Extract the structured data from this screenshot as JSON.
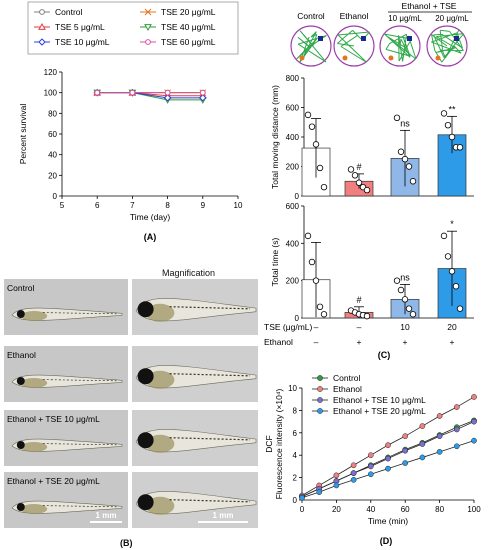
{
  "panelA": {
    "label": "(A)",
    "ylabel": "Percent survival",
    "xlabel": "Time (day)",
    "legend": [
      {
        "name": "Control",
        "color": "#7f7f7f",
        "marker": "circle"
      },
      {
        "name": "TSE 20 μg/mL",
        "color": "#e4741f",
        "marker": "x"
      },
      {
        "name": "TSE 5 μg/mL",
        "color": "#e33b3b",
        "marker": "triangle"
      },
      {
        "name": "TSE 40 μg/mL",
        "color": "#2e9b3a",
        "marker": "triangle-down"
      },
      {
        "name": "TSE 10 μg/mL",
        "color": "#2b3de0",
        "marker": "diamond"
      },
      {
        "name": "TSE 60 μg/mL",
        "color": "#d94fa0",
        "marker": "circle"
      }
    ]
  },
  "panelB": {
    "label": "(B)",
    "magnification": "Magnification",
    "rows": [
      {
        "label": "Control"
      },
      {
        "label": "Ethanol"
      },
      {
        "label": "Ethanol + TSE 10 μg/mL"
      },
      {
        "label": "Ethanol + TSE 20 μg/mL"
      }
    ],
    "scale_left": "1 mm",
    "scale_right": "1 mm"
  },
  "panelC": {
    "label": "(C)",
    "header": {
      "control": "Control",
      "ethanol": "Ethanol",
      "group": "Ethanol + TSE",
      "dose10": "10 μg/mL",
      "dose20": "20 μg/mL"
    },
    "tse_row_label": "TSE (μg/mL)",
    "ethanol_row_label": "Ethanol",
    "tse_row": [
      "–",
      "–",
      "10",
      "20"
    ],
    "ethanol_row": [
      "–",
      "+",
      "+",
      "+"
    ],
    "colors": [
      "#ffffff",
      "#f08080",
      "#8fb8e8",
      "#2e9be8"
    ]
  },
  "panelD": {
    "label": "(D)",
    "ylabel1": "DCF",
    "ylabel2": "Fluorescence intensity (×10⁴)"
  },
  "chart_data": [
    {
      "type": "line",
      "ylabel": "Percent survival",
      "xlabel": "Time (day)",
      "xlim": [
        5,
        10
      ],
      "ylim": [
        0,
        120
      ],
      "xticks": [
        5,
        6,
        7,
        8,
        9,
        10
      ],
      "yticks": [
        0,
        20,
        40,
        60,
        80,
        100,
        120
      ],
      "grid": false,
      "legend_position": "top",
      "x": [
        6,
        7,
        8,
        9
      ],
      "series": [
        {
          "name": "Control",
          "values": [
            100,
            100,
            100,
            100
          ]
        },
        {
          "name": "TSE 20 μg/mL",
          "values": [
            100,
            100,
            100,
            100
          ]
        },
        {
          "name": "TSE 5 μg/mL",
          "values": [
            100,
            100,
            97,
            97
          ]
        },
        {
          "name": "TSE 40 μg/mL",
          "values": [
            100,
            100,
            93,
            93
          ]
        },
        {
          "name": "TSE 10 μg/mL",
          "values": [
            100,
            100,
            95,
            95
          ]
        },
        {
          "name": "TSE 60 μg/mL",
          "values": [
            100,
            100,
            100,
            100
          ]
        }
      ]
    },
    {
      "type": "bar",
      "ylabel": "Total moving distance (mm)",
      "categories": [
        "Control",
        "Ethanol",
        "TSE 10",
        "TSE 20"
      ],
      "ylim": [
        0,
        800
      ],
      "yticks": [
        0,
        200,
        400,
        600,
        800
      ],
      "values": [
        325,
        100,
        255,
        415
      ],
      "errors": [
        200,
        50,
        190,
        125
      ],
      "points": [
        [
          550,
          470,
          350,
          190,
          60
        ],
        [
          180,
          140,
          90,
          60,
          40
        ],
        [
          530,
          300,
          250,
          200,
          100
        ],
        [
          560,
          480,
          400,
          330,
          330
        ]
      ],
      "significance": [
        "",
        "#",
        "ns",
        "**"
      ]
    },
    {
      "type": "bar",
      "ylabel": "Total time (s)",
      "categories": [
        "Control",
        "Ethanol",
        "TSE 10",
        "TSE 20"
      ],
      "ylim": [
        0,
        600
      ],
      "yticks": [
        0,
        200,
        400,
        600
      ],
      "values": [
        205,
        30,
        100,
        265
      ],
      "errors": [
        200,
        30,
        80,
        200
      ],
      "points": [
        [
          440,
          300,
          200,
          60,
          20
        ],
        [
          40,
          30,
          20,
          15,
          10
        ],
        [
          200,
          150,
          100,
          50,
          20
        ],
        [
          440,
          330,
          250,
          170,
          50
        ]
      ],
      "significance": [
        "",
        "#",
        "ns",
        "*"
      ]
    },
    {
      "type": "line",
      "xlabel": "Time (min)",
      "ylabel": "DCF Fluorescence intensity (×10⁴)",
      "xlim": [
        0,
        100
      ],
      "ylim": [
        0,
        10
      ],
      "xticks": [
        0,
        20,
        40,
        60,
        80,
        100
      ],
      "yticks": [
        0,
        2,
        4,
        6,
        8,
        10
      ],
      "grid": false,
      "legend_position": "top-left",
      "x": [
        0,
        10,
        20,
        30,
        40,
        50,
        60,
        70,
        80,
        90,
        100
      ],
      "series": [
        {
          "name": "Control",
          "color": "#2e9b3a",
          "values": [
            0.3,
            1.0,
            1.7,
            2.4,
            3.1,
            3.8,
            4.5,
            5.1,
            5.8,
            6.5,
            7.1
          ]
        },
        {
          "name": "Ethanol",
          "color": "#f08080",
          "values": [
            0.4,
            1.3,
            2.2,
            3.1,
            4.0,
            4.9,
            5.7,
            6.6,
            7.5,
            8.3,
            9.2
          ]
        },
        {
          "name": "Ethanol + TSE 10 μg/mL",
          "color": "#7b6fd0",
          "values": [
            0.3,
            1.0,
            1.7,
            2.4,
            3.0,
            3.7,
            4.4,
            5.0,
            5.7,
            6.3,
            7.0
          ]
        },
        {
          "name": "Ethanol + TSE 20 μg/mL",
          "color": "#2e9be8",
          "values": [
            0.2,
            0.7,
            1.3,
            1.8,
            2.3,
            2.8,
            3.3,
            3.8,
            4.3,
            4.8,
            5.3
          ]
        }
      ]
    }
  ]
}
